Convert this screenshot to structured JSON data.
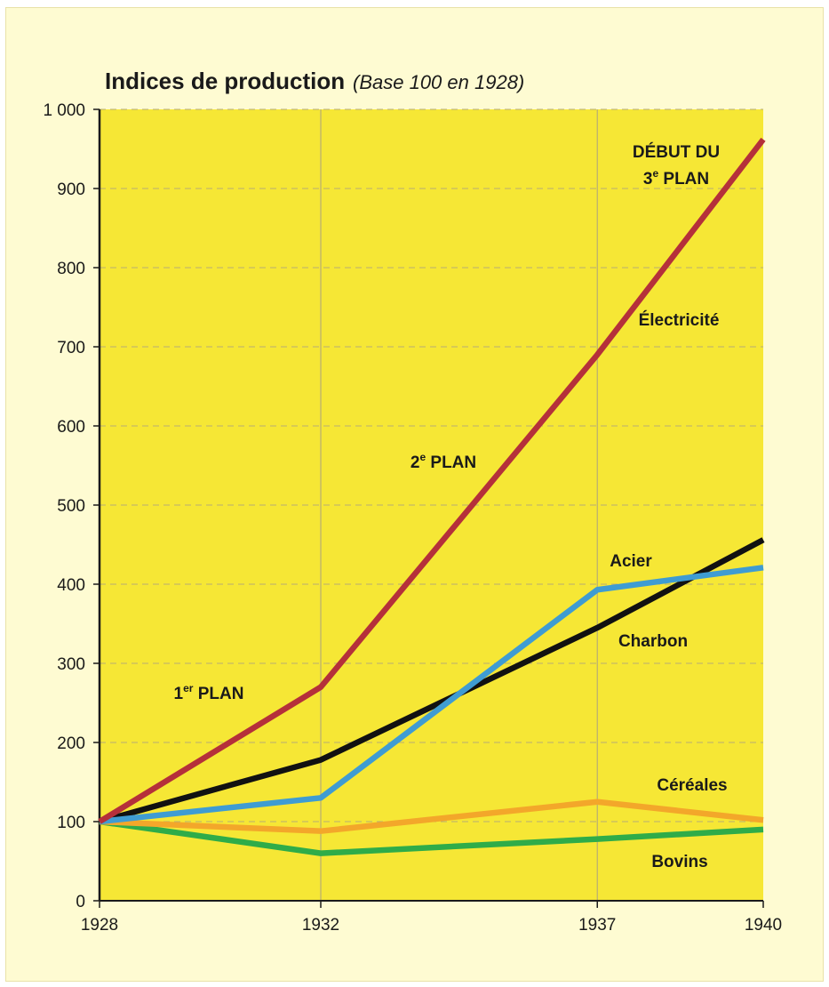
{
  "chart_data": {
    "type": "line",
    "title": "Indices de production",
    "subtitle": "(Base 100 en 1928)",
    "x": [
      1928,
      1932,
      1937,
      1940
    ],
    "x_tick_labels": [
      "1928",
      "1932",
      "1937",
      "1940"
    ],
    "ylim": [
      0,
      1000
    ],
    "y_ticks": [
      0,
      100,
      200,
      300,
      400,
      500,
      600,
      700,
      800,
      900,
      1000
    ],
    "y_tick_labels": [
      "0",
      "100",
      "200",
      "300",
      "400",
      "500",
      "600",
      "700",
      "800",
      "900",
      "1 000"
    ],
    "grid": true,
    "series": [
      {
        "name": "Électricité",
        "color": "#b5303a",
        "values": [
          100,
          270,
          690,
          962
        ]
      },
      {
        "name": "Charbon",
        "color": "#111111",
        "values": [
          100,
          178,
          345,
          456
        ]
      },
      {
        "name": "Acier",
        "color": "#3f9cd2",
        "values": [
          100,
          130,
          393,
          421
        ]
      },
      {
        "name": "Céréales",
        "color": "#f3a72a",
        "values": [
          100,
          88,
          125,
          102
        ]
      },
      {
        "name": "Bovins",
        "color": "#2fac49",
        "values": [
          100,
          60,
          78,
          90
        ]
      }
    ],
    "annotations": {
      "plan1": {
        "base": "1",
        "sup": "er",
        "rest": " PLAN"
      },
      "plan2": {
        "base": "2",
        "sup": "e",
        "rest": " PLAN"
      },
      "plan3_line1": "DÉBUT DU",
      "plan3_line2": {
        "base": "3",
        "sup": "e",
        "rest": " PLAN"
      }
    },
    "colors": {
      "plot_background": "#f6e735",
      "page_background": "#fefbd2"
    }
  }
}
